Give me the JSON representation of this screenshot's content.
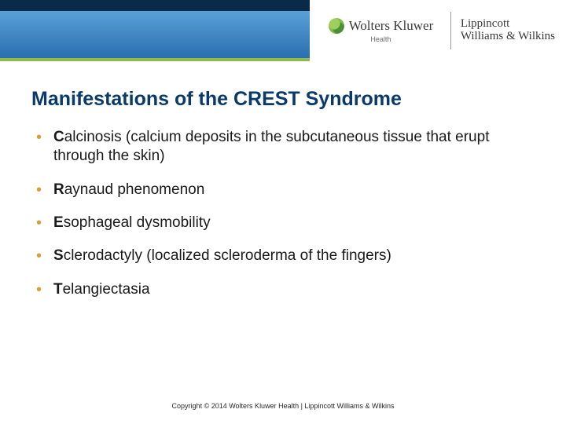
{
  "header": {
    "logo_left_main": "Wolters Kluwer",
    "logo_left_sub": "Health",
    "logo_right_line1": "Lippincott",
    "logo_right_line2": "Williams & Wilkins",
    "colors": {
      "dark_top": "#0a2a4a",
      "gradient_top": "#5aa0d8",
      "gradient_bottom": "#2a6fae",
      "green_bar": "#8fb94a"
    }
  },
  "title": "Manifestations of the CREST Syndrome",
  "title_color": "#0a3a6a",
  "title_fontsize": 25,
  "bullet_color": "#d8a038",
  "body_fontsize": 19,
  "bullets": [
    {
      "lead": "C",
      "rest": "alcinosis (calcium deposits in the subcutaneous tissue that erupt through the skin)"
    },
    {
      "lead": "R",
      "rest": "aynaud phenomenon"
    },
    {
      "lead": "E",
      "rest": "sophageal dysmobility"
    },
    {
      "lead": "S",
      "rest": "clerodactyly (localized scleroderma of the fingers)"
    },
    {
      "lead": "T",
      "rest": "elangiectasia"
    }
  ],
  "copyright": "Copyright © 2014 Wolters Kluwer Health | Lippincott Williams & Wilkins"
}
